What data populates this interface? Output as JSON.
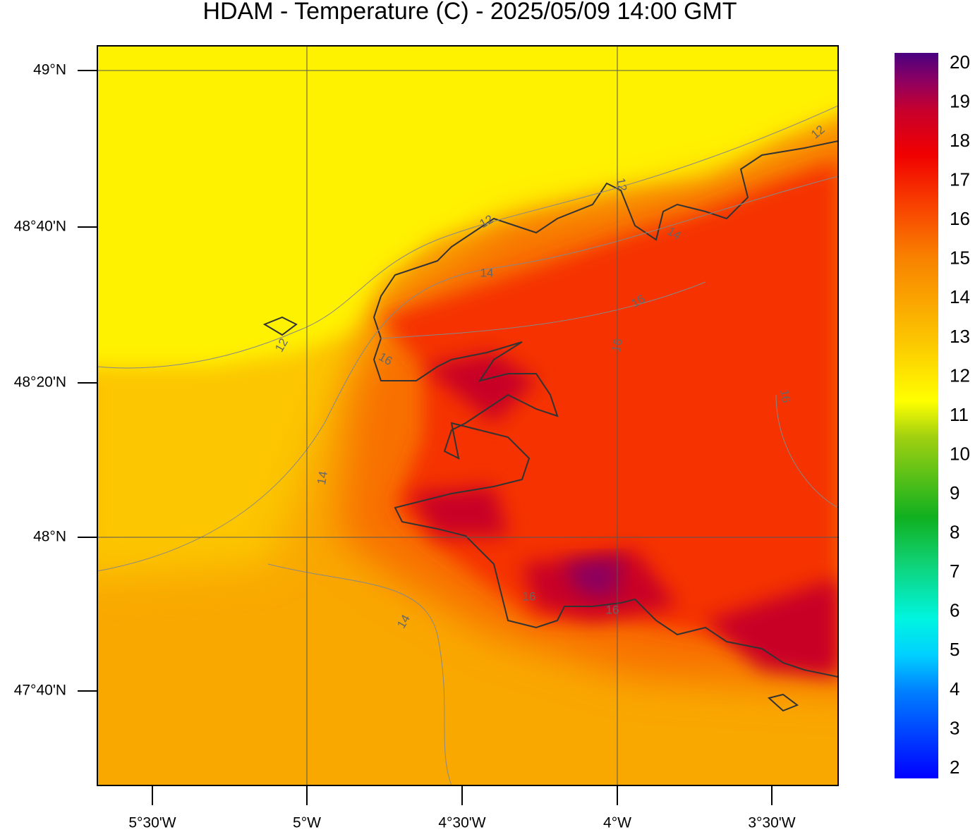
{
  "header": {
    "title": "HDAM - Temperature (C)  -  2025/05/09  14:00 GMT"
  },
  "map": {
    "lat_labels": [
      "49°N",
      "48°40'N",
      "48°20'N",
      "48°N",
      "47°40'N"
    ],
    "lon_labels": [
      "5°30'W",
      "5°W",
      "4°30'W",
      "4°W",
      "3°30'W"
    ],
    "contour_labels": [
      "12",
      "12",
      "12",
      "12",
      "14",
      "14",
      "14",
      "14",
      "16",
      "16",
      "16",
      "16",
      "16",
      "16"
    ]
  },
  "colorbar": {
    "ticks": [
      2,
      3,
      4,
      5,
      6,
      7,
      8,
      9,
      10,
      11,
      12,
      13,
      14,
      15,
      16,
      17,
      18,
      19,
      20
    ]
  }
}
